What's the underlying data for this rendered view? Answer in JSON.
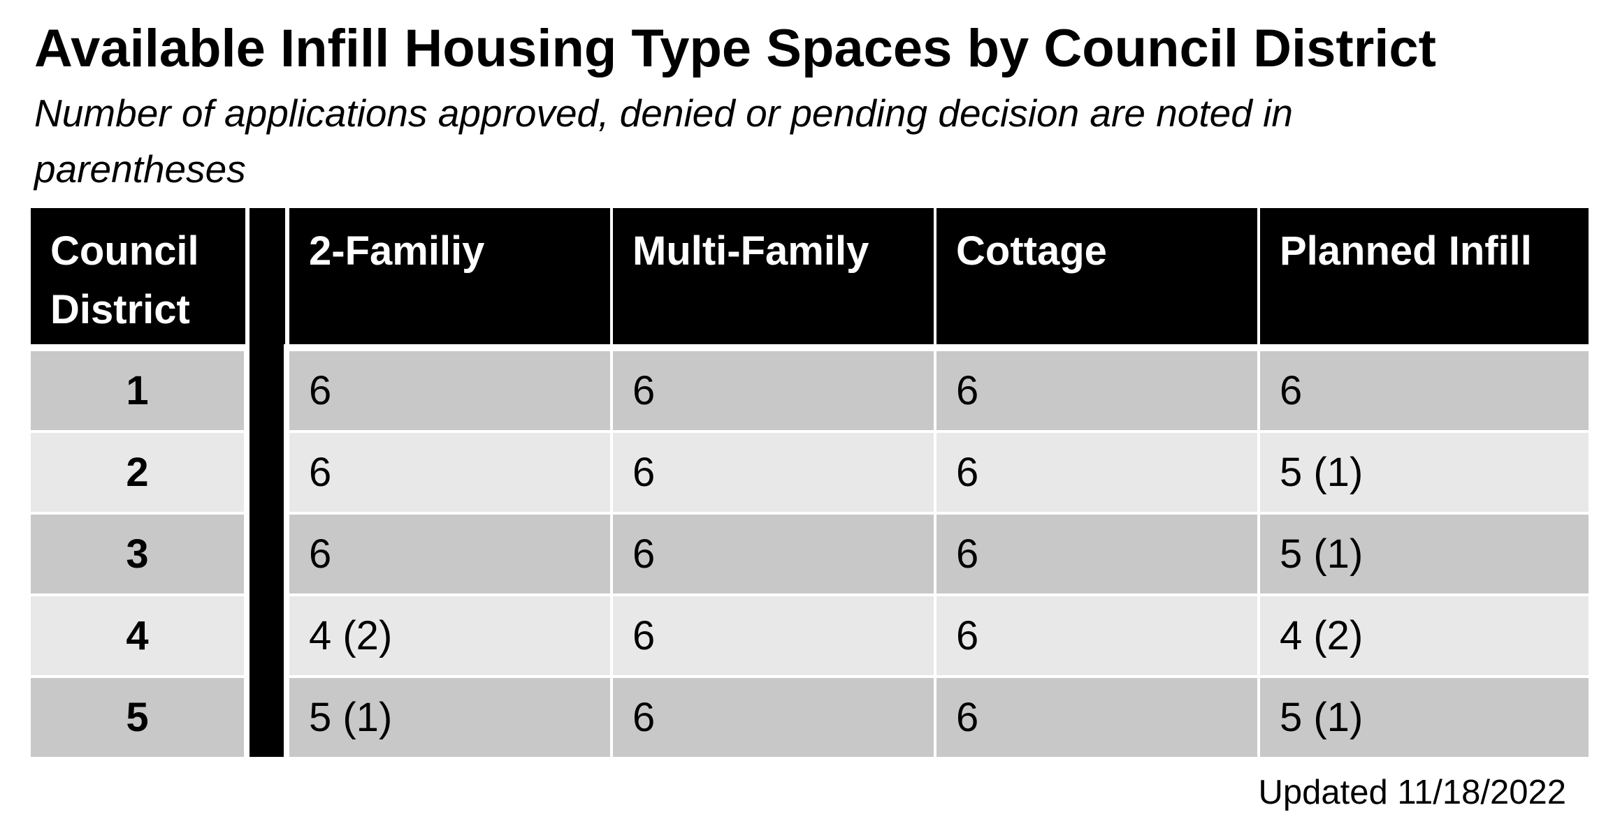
{
  "title": "Available Infill Housing Type Spaces by Council District",
  "subtitle": "Number of applications approved, denied or pending decision are noted in parentheses",
  "table": {
    "headers": {
      "district_line1": "Council",
      "district_line2": "District",
      "two_family": "2-Familiy",
      "multi_family": "Multi-Family",
      "cottage": "Cottage",
      "planned_infill": "Planned Infill"
    },
    "rows": [
      {
        "district": "1",
        "two_family": "6",
        "multi_family": "6",
        "cottage": "6",
        "planned_infill": "6"
      },
      {
        "district": "2",
        "two_family": "6",
        "multi_family": "6",
        "cottage": "6",
        "planned_infill": "5 (1)"
      },
      {
        "district": "3",
        "two_family": "6",
        "multi_family": "6",
        "cottage": "6",
        "planned_infill": "5 (1)"
      },
      {
        "district": "4",
        "two_family": "4 (2)",
        "multi_family": "6",
        "cottage": "6",
        "planned_infill": "4 (2)"
      },
      {
        "district": "5",
        "two_family": "5 (1)",
        "multi_family": "6",
        "cottage": "6",
        "planned_infill": "5 (1)"
      }
    ]
  },
  "footer": {
    "updated": "Updated 11/18/2022"
  },
  "colors": {
    "header_bg": "#000000",
    "header_text": "#ffffff",
    "row_odd": "#c8c8c8",
    "row_even": "#e8e8e8"
  }
}
